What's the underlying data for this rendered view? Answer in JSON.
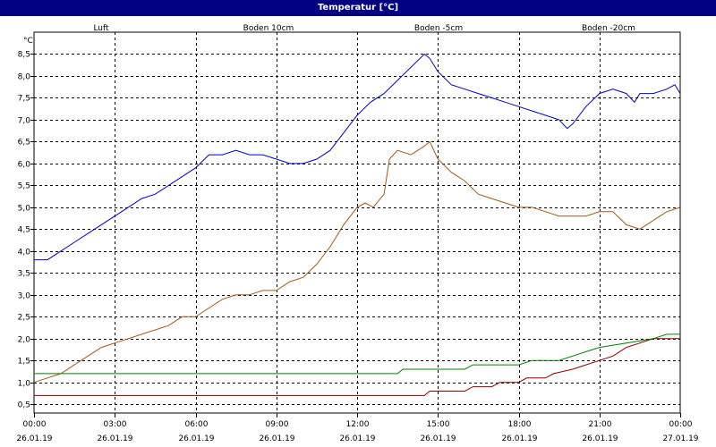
{
  "window": {
    "title": "Temperatur [°C]"
  },
  "chart_data": {
    "type": "line",
    "title": "Temperatur [°C]",
    "ylabel": "°C",
    "xlabel": "",
    "ylim": [
      0.3,
      9.0
    ],
    "xlim": [
      0,
      24
    ],
    "grid": true,
    "legend_placement": "top",
    "y_ticks": [
      "0,5",
      "1,0",
      "1,5",
      "2,0",
      "2,5",
      "3,0",
      "3,5",
      "4,0",
      "4,5",
      "5,0",
      "5,5",
      "6,0",
      "6,5",
      "7,0",
      "7,5",
      "8,0",
      "8,5"
    ],
    "y_tick_values": [
      0.5,
      1.0,
      1.5,
      2.0,
      2.5,
      3.0,
      3.5,
      4.0,
      4.5,
      5.0,
      5.5,
      6.0,
      6.5,
      7.0,
      7.5,
      8.0,
      8.5
    ],
    "x_ticks": [
      {
        "x": 0,
        "time": "00:00",
        "date": "26.01.19"
      },
      {
        "x": 3,
        "time": "03:00",
        "date": "26.01.19"
      },
      {
        "x": 6,
        "time": "06:00",
        "date": "26.01.19"
      },
      {
        "x": 9,
        "time": "09:00",
        "date": "26.01.19"
      },
      {
        "x": 12,
        "time": "12:00",
        "date": "26.01.19"
      },
      {
        "x": 15,
        "time": "15:00",
        "date": "26.01.19"
      },
      {
        "x": 18,
        "time": "18:00",
        "date": "26.01.19"
      },
      {
        "x": 21,
        "time": "21:00",
        "date": "26.01.19"
      },
      {
        "x": 24,
        "time": "00:00",
        "date": "27.01.19"
      }
    ],
    "series": [
      {
        "name": "Luft",
        "color": "#0000c8",
        "points": [
          [
            0,
            3.8
          ],
          [
            0.5,
            3.8
          ],
          [
            1,
            4.0
          ],
          [
            1.5,
            4.2
          ],
          [
            2,
            4.4
          ],
          [
            2.5,
            4.6
          ],
          [
            3,
            4.8
          ],
          [
            3.5,
            5.0
          ],
          [
            4,
            5.2
          ],
          [
            4.5,
            5.3
          ],
          [
            5,
            5.5
          ],
          [
            5.5,
            5.7
          ],
          [
            6,
            5.9
          ],
          [
            6.5,
            6.2
          ],
          [
            7,
            6.2
          ],
          [
            7.5,
            6.3
          ],
          [
            8,
            6.2
          ],
          [
            8.5,
            6.2
          ],
          [
            9,
            6.1
          ],
          [
            9.5,
            6.0
          ],
          [
            10,
            6.0
          ],
          [
            10.5,
            6.1
          ],
          [
            11,
            6.3
          ],
          [
            11.5,
            6.7
          ],
          [
            12,
            7.1
          ],
          [
            12.5,
            7.4
          ],
          [
            13,
            7.6
          ],
          [
            13.5,
            7.9
          ],
          [
            14,
            8.2
          ],
          [
            14.5,
            8.5
          ],
          [
            14.7,
            8.4
          ],
          [
            15,
            8.1
          ],
          [
            15.5,
            7.8
          ],
          [
            16,
            7.7
          ],
          [
            16.5,
            7.6
          ],
          [
            17,
            7.5
          ],
          [
            17.5,
            7.4
          ],
          [
            18,
            7.3
          ],
          [
            18.5,
            7.2
          ],
          [
            19,
            7.1
          ],
          [
            19.5,
            7.0
          ],
          [
            19.8,
            6.8
          ],
          [
            20,
            6.9
          ],
          [
            20.5,
            7.3
          ],
          [
            21,
            7.6
          ],
          [
            21.5,
            7.7
          ],
          [
            22,
            7.6
          ],
          [
            22.3,
            7.4
          ],
          [
            22.5,
            7.6
          ],
          [
            23,
            7.6
          ],
          [
            23.5,
            7.7
          ],
          [
            23.8,
            7.8
          ],
          [
            24,
            7.6
          ]
        ]
      },
      {
        "name": "Boden 10cm",
        "color": "#a05a14",
        "points": [
          [
            0,
            1.0
          ],
          [
            0.5,
            1.1
          ],
          [
            1,
            1.2
          ],
          [
            1.5,
            1.4
          ],
          [
            2,
            1.6
          ],
          [
            2.5,
            1.8
          ],
          [
            3,
            1.9
          ],
          [
            3.5,
            2.0
          ],
          [
            4,
            2.1
          ],
          [
            4.5,
            2.2
          ],
          [
            5,
            2.3
          ],
          [
            5.5,
            2.5
          ],
          [
            6,
            2.5
          ],
          [
            6.5,
            2.7
          ],
          [
            7,
            2.9
          ],
          [
            7.5,
            3.0
          ],
          [
            8,
            3.0
          ],
          [
            8.5,
            3.1
          ],
          [
            9,
            3.1
          ],
          [
            9.5,
            3.3
          ],
          [
            10,
            3.4
          ],
          [
            10.5,
            3.7
          ],
          [
            11,
            4.1
          ],
          [
            11.5,
            4.6
          ],
          [
            12,
            5.0
          ],
          [
            12.3,
            5.1
          ],
          [
            12.6,
            5.0
          ],
          [
            13,
            5.3
          ],
          [
            13.2,
            6.1
          ],
          [
            13.5,
            6.3
          ],
          [
            14,
            6.2
          ],
          [
            14.5,
            6.4
          ],
          [
            14.7,
            6.5
          ],
          [
            15,
            6.1
          ],
          [
            15.5,
            5.8
          ],
          [
            16,
            5.6
          ],
          [
            16.5,
            5.3
          ],
          [
            17,
            5.2
          ],
          [
            17.5,
            5.1
          ],
          [
            18,
            5.0
          ],
          [
            18.5,
            5.0
          ],
          [
            19,
            4.9
          ],
          [
            19.5,
            4.8
          ],
          [
            20,
            4.8
          ],
          [
            20.5,
            4.8
          ],
          [
            21,
            4.9
          ],
          [
            21.5,
            4.9
          ],
          [
            22,
            4.6
          ],
          [
            22.5,
            4.5
          ],
          [
            23,
            4.7
          ],
          [
            23.5,
            4.9
          ],
          [
            24,
            5.0
          ]
        ]
      },
      {
        "name": "Boden -5cm",
        "color": "#8c0000",
        "points": [
          [
            0,
            0.7
          ],
          [
            14.5,
            0.7
          ],
          [
            14.7,
            0.8
          ],
          [
            16,
            0.8
          ],
          [
            16.3,
            0.9
          ],
          [
            17,
            0.9
          ],
          [
            17.3,
            1.0
          ],
          [
            18,
            1.0
          ],
          [
            18.3,
            1.1
          ],
          [
            19,
            1.1
          ],
          [
            19.3,
            1.2
          ],
          [
            20,
            1.3
          ],
          [
            20.5,
            1.4
          ],
          [
            21,
            1.5
          ],
          [
            21.5,
            1.6
          ],
          [
            22,
            1.8
          ],
          [
            22.5,
            1.9
          ],
          [
            23,
            2.0
          ],
          [
            24,
            2.0
          ]
        ]
      },
      {
        "name": "Boden -20cm",
        "color": "#008000",
        "points": [
          [
            0,
            1.2
          ],
          [
            13.5,
            1.2
          ],
          [
            13.7,
            1.3
          ],
          [
            16,
            1.3
          ],
          [
            16.3,
            1.4
          ],
          [
            18,
            1.4
          ],
          [
            18.5,
            1.5
          ],
          [
            19.5,
            1.5
          ],
          [
            20,
            1.6
          ],
          [
            20.5,
            1.7
          ],
          [
            21,
            1.8
          ],
          [
            22,
            1.9
          ],
          [
            23,
            2.0
          ],
          [
            23.5,
            2.1
          ],
          [
            24,
            2.1
          ]
        ]
      }
    ]
  }
}
